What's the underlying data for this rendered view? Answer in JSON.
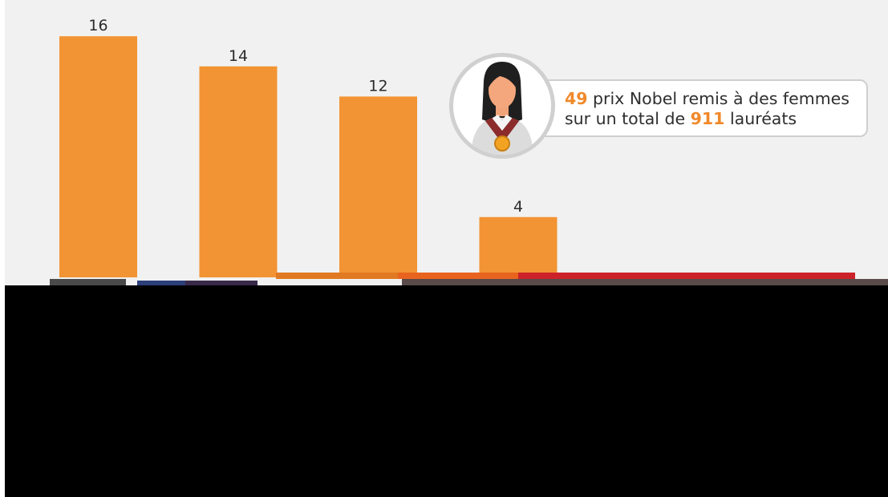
{
  "chart_data": {
    "type": "bar",
    "categories": [
      "",
      "",
      "",
      ""
    ],
    "values": [
      16,
      14,
      12,
      4
    ],
    "value_labels": [
      "16",
      "14",
      "12",
      "4"
    ],
    "ylim": [
      0,
      17.5
    ],
    "grid": false,
    "legend": "none"
  },
  "callout": {
    "count": "49",
    "text1": " prix Nobel remis à des femmes",
    "text2": "sur un total de ",
    "total": "911",
    "text3": " lauréats"
  },
  "colors": {
    "bar": "#f29433",
    "accent_number": "#f0892a",
    "background": "#f1f1f1",
    "baseline": "#cc2229"
  },
  "icons": {
    "avatar": "woman-laureate-icon",
    "medal": "medal-icon"
  }
}
